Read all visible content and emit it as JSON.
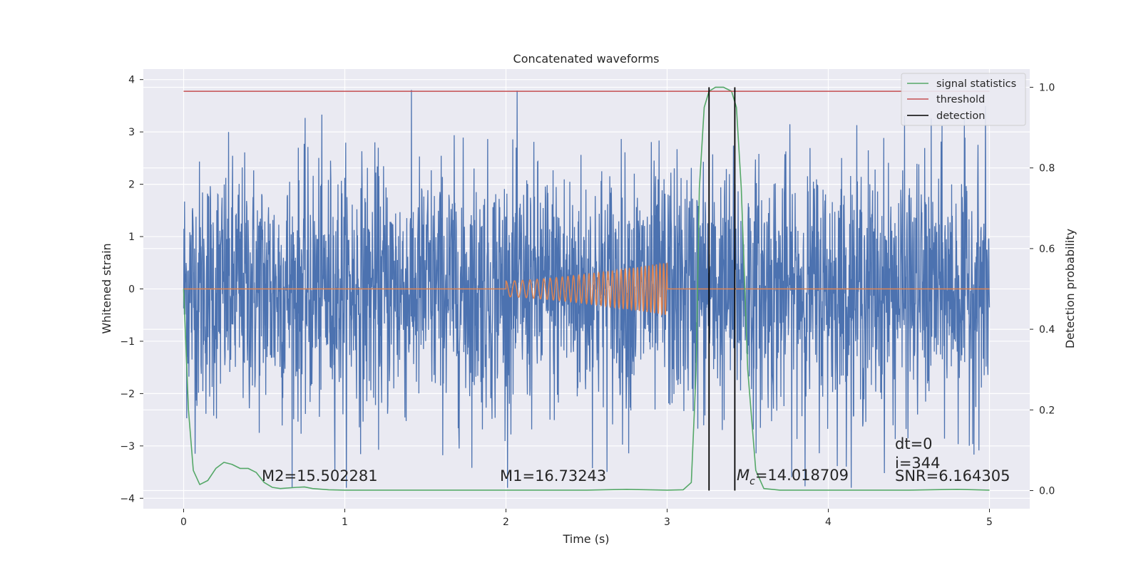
{
  "chart_data": {
    "type": "line",
    "title": "Concatenated waveforms",
    "xlabel": "Time (s)",
    "ylabel": "Whitened strain",
    "y2label": "Detection probability",
    "xlim": [
      -0.25,
      5.25
    ],
    "ylim": [
      -4.2,
      4.2
    ],
    "y2lim": [
      -0.045,
      1.045
    ],
    "x_ticks": [
      "0",
      "1",
      "2",
      "3",
      "4",
      "5"
    ],
    "y_ticks": [
      "4",
      "3",
      "2",
      "1",
      "0",
      "−1",
      "−2",
      "−3",
      "−4"
    ],
    "y2_ticks": [
      "1.0",
      "0.8",
      "0.6",
      "0.4",
      "0.2",
      "0.0"
    ],
    "grid": true,
    "legend_placement": "top-right",
    "colors": {
      "strain": "#4c72b0",
      "template": "#dd8452",
      "signal_statistics": "#55a868",
      "threshold": "#c44e52",
      "detection": "#000000"
    },
    "series": [
      {
        "name": "signal statistics",
        "axis": "right",
        "x": [
          0.0,
          0.03,
          0.06,
          0.1,
          0.15,
          0.2,
          0.25,
          0.3,
          0.35,
          0.4,
          0.45,
          0.5,
          0.55,
          0.6,
          0.7,
          0.75,
          0.8,
          0.9,
          1.0,
          1.5,
          2.0,
          2.5,
          2.75,
          3.0,
          3.1,
          3.15,
          3.18,
          3.2,
          3.23,
          3.26,
          3.3,
          3.35,
          3.4,
          3.43,
          3.46,
          3.5,
          3.55,
          3.6,
          3.7,
          4.0,
          4.5,
          4.8,
          5.0
        ],
        "y": [
          0.5,
          0.2,
          0.05,
          0.015,
          0.025,
          0.055,
          0.07,
          0.065,
          0.055,
          0.055,
          0.045,
          0.02,
          0.008,
          0.005,
          0.008,
          0.009,
          0.005,
          0.002,
          0.001,
          0.001,
          0.001,
          0.001,
          0.003,
          0.001,
          0.002,
          0.02,
          0.3,
          0.75,
          0.95,
          0.99,
          1.0,
          1.0,
          0.99,
          0.95,
          0.75,
          0.3,
          0.05,
          0.005,
          0.001,
          0.001,
          0.001,
          0.003,
          0.001
        ]
      },
      {
        "name": "threshold",
        "axis": "right",
        "x": [
          0,
          5
        ],
        "y": [
          0.99,
          0.99
        ]
      },
      {
        "name": "detection",
        "axis": "right",
        "x": [
          3.26,
          3.42
        ],
        "y_range": [
          0,
          1
        ]
      }
    ],
    "strain": {
      "x_range": [
        0,
        5
      ],
      "typical_amplitude": 1.2,
      "max": 3.8,
      "min": -3.8
    },
    "template": {
      "x_range": [
        2.0,
        3.0
      ],
      "amplitude_start": 0.15,
      "amplitude_end": 0.5
    },
    "annotations": {
      "m2": "M2=15.502281",
      "m1": "M1=16.73243",
      "mc_symbol": "M",
      "mc_subscript": "c",
      "mc_value": "=14.018709",
      "dt": "dt=0",
      "i": "i=344",
      "snr": "SNR=6.164305"
    }
  }
}
